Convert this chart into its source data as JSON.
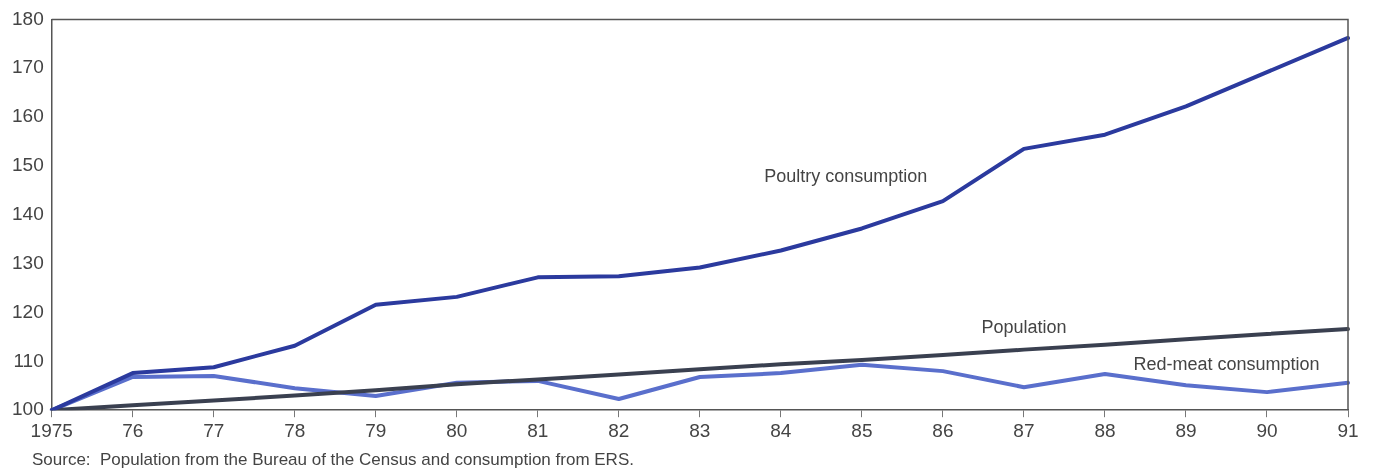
{
  "chart_data": {
    "type": "line",
    "categories": [
      "1975",
      "76",
      "77",
      "78",
      "79",
      "80",
      "81",
      "82",
      "83",
      "84",
      "85",
      "86",
      "87",
      "88",
      "89",
      "90",
      "91"
    ],
    "series": [
      {
        "name": "Poultry consumption",
        "color": "#2b3a9e",
        "values": [
          100,
          107.6,
          108.8,
          113.2,
          121.6,
          123.2,
          127.2,
          127.4,
          129.2,
          132.7,
          137.2,
          142.8,
          153.5,
          156.4,
          162.2,
          169.2,
          176.2
        ]
      },
      {
        "name": "Population",
        "color": "#3a4050",
        "values": [
          100,
          101,
          102,
          103,
          104.1,
          105.3,
          106.3,
          107.3,
          108.4,
          109.4,
          110.3,
          111.3,
          112.4,
          113.4,
          114.5,
          115.6,
          116.6
        ]
      },
      {
        "name": "Red-meat consumption",
        "color": "#5a6fcc",
        "values": [
          100,
          106.8,
          107,
          104.5,
          102.9,
          105.6,
          106,
          102.3,
          106.8,
          107.6,
          109.3,
          108,
          104.7,
          107.4,
          105.1,
          103.7,
          105.6
        ]
      }
    ],
    "ylim": [
      100,
      180
    ],
    "yticks": [
      100,
      110,
      120,
      130,
      140,
      150,
      160,
      170,
      180
    ],
    "grid": false,
    "legend": false,
    "marker": "none",
    "line_style": "solid",
    "annotations": [
      "Source:  Population from the Bureau of the Census and consumption from ERS."
    ]
  }
}
